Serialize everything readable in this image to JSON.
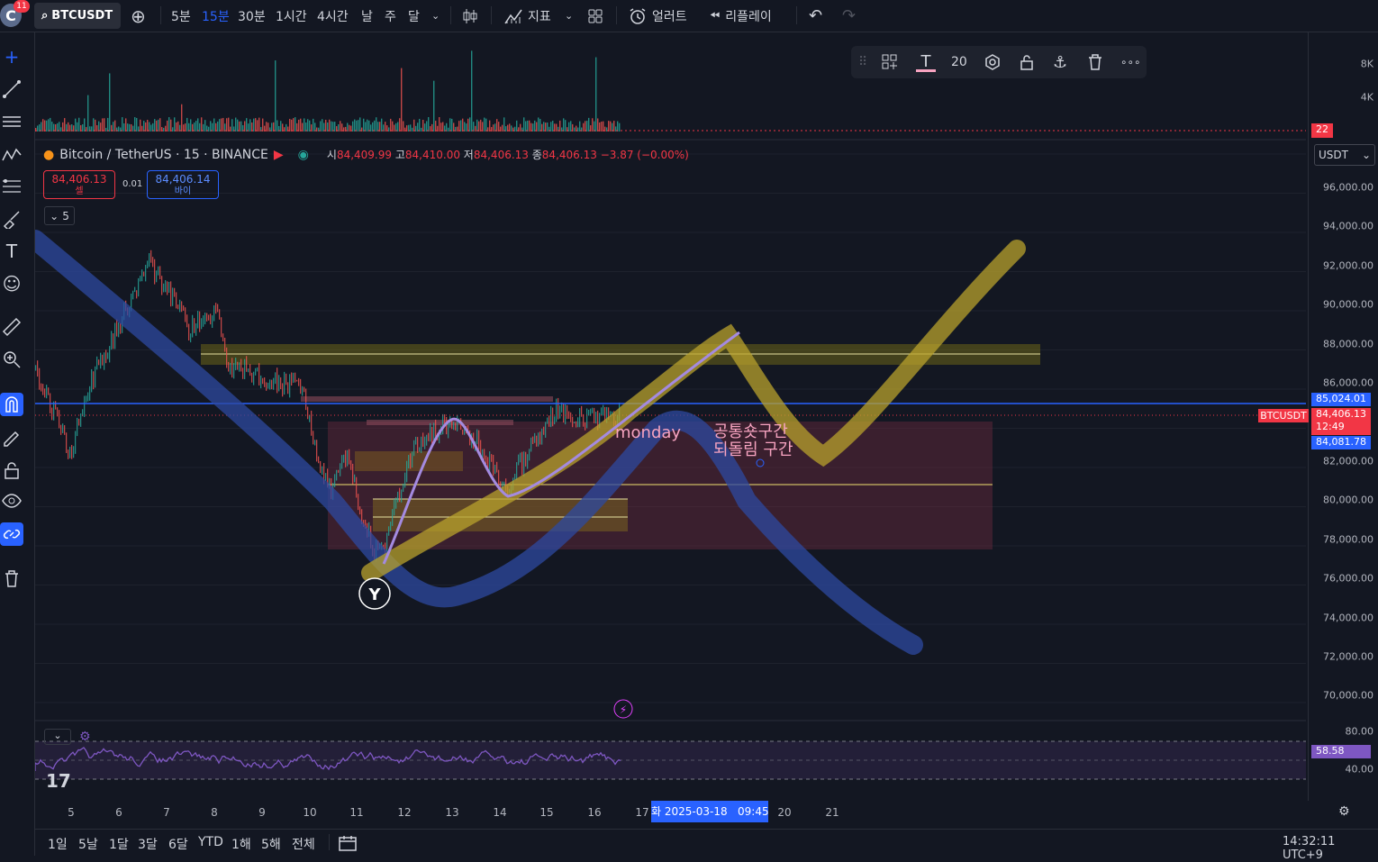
{
  "topbar": {
    "notifications": "11",
    "avatar_letter": "C",
    "symbol": "BTCUSDT",
    "intervals": [
      "5분",
      "15분",
      "30분",
      "1시간",
      "4시간",
      "날",
      "주",
      "달"
    ],
    "active_interval": "15분",
    "indicators_label": "지표",
    "alert_label": "얼러트",
    "replay_label": "리플레이"
  },
  "legend": {
    "title": "Bitcoin / TetherUS · 15 · BINANCE",
    "open_label": "시",
    "open": "84,409.99",
    "high_label": "고",
    "high": "84,410.00",
    "low_label": "저",
    "low": "84,406.13",
    "close_label": "종",
    "close": "84,406.13",
    "change": "−3.87 (−0.00%)"
  },
  "trade": {
    "sell_price": "84,406.13",
    "sell_label": "셀",
    "spread": "0.01",
    "buy_price": "84,406.14",
    "buy_label": "바이",
    "collapse_count": "5"
  },
  "draw_toolbar": {
    "font_size": "20"
  },
  "currency": "USDT",
  "volume_axis": [
    "8K",
    "4K"
  ],
  "volume_badge": "22",
  "price_axis": [
    "96,000.00",
    "94,000.00",
    "92,000.00",
    "90,000.00",
    "88,000.00",
    "86,000.00",
    "82,000.00",
    "80,000.00",
    "78,000.00",
    "76,000.00",
    "74,000.00",
    "72,000.00",
    "70,000.00"
  ],
  "price_badges": {
    "blue_line": "85,024.01",
    "symbol_tag": "BTCUSDT",
    "last": "84,406.13",
    "countdown": "12:49",
    "low_line": "84,081.78"
  },
  "rsi": {
    "levels": [
      "80.00",
      "40.00"
    ],
    "value": "58.58"
  },
  "time_axis": [
    "5",
    "6",
    "7",
    "8",
    "9",
    "10",
    "11",
    "12",
    "13",
    "14",
    "15",
    "16",
    "17",
    "20",
    "21"
  ],
  "time_cursor": "화 2025-03-18   09:45",
  "annotations": {
    "monday": "monday",
    "zone_line1": "공통숏구간",
    "zone_line2": "되돌림 구간",
    "marker": "Y"
  },
  "ranges": [
    "1일",
    "5날",
    "1달",
    "3달",
    "6달",
    "YTD",
    "1해",
    "5해",
    "전체"
  ],
  "clock": "14:32:11 UTC+9",
  "colors": {
    "up": "#26a69a",
    "down": "#ef5350",
    "accent": "#2962ff",
    "blue_line": "#2962ff",
    "yellow": "#b8a22c",
    "purple": "#9d7cd8"
  }
}
